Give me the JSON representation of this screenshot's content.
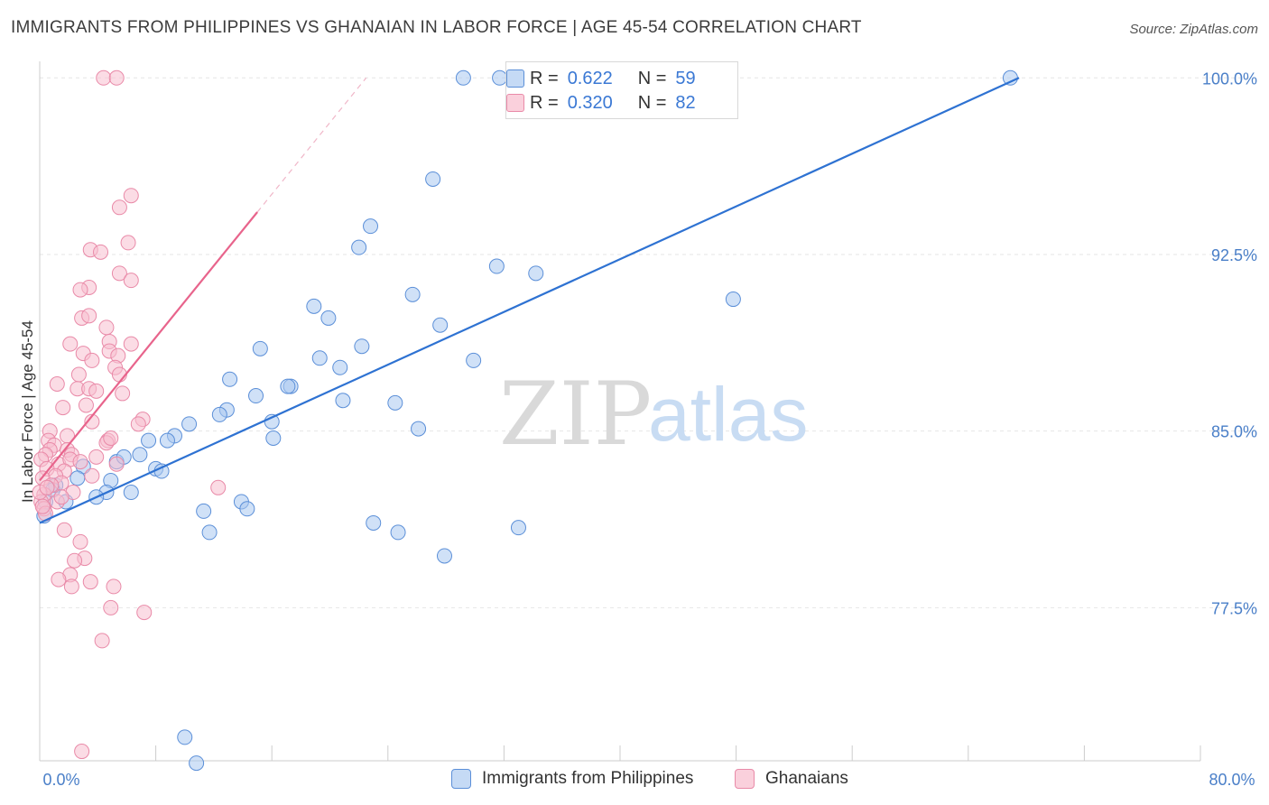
{
  "title": "IMMIGRANTS FROM PHILIPPINES VS GHANAIAN IN LABOR FORCE | AGE 45-54 CORRELATION CHART",
  "source": "Source: ZipAtlas.com",
  "watermark": {
    "zip": "ZIP",
    "atlas": "atlas"
  },
  "legend": {
    "rows": [
      {
        "r_label": "R =",
        "r_value": "0.622",
        "n_label": "N =",
        "n_value": "59"
      },
      {
        "r_label": "R =",
        "r_value": "0.320",
        "n_label": "N =",
        "n_value": "82"
      }
    ]
  },
  "colors": {
    "blue_fill": "#aac8f0",
    "blue_stroke": "#5b8fd8",
    "blue_line": "#2e72d2",
    "pink_fill": "#f7c0d0",
    "pink_stroke": "#e98aa8",
    "pink_line": "#e8648c",
    "axis_text": "#4a7fc8",
    "grid": "#e6e6e6"
  },
  "chart_data": {
    "type": "scatter",
    "title": "IMMIGRANTS FROM PHILIPPINES VS GHANAIAN IN LABOR FORCE | AGE 45-54 CORRELATION CHART",
    "xlabel": "",
    "ylabel": "In Labor Force | Age 45-54",
    "xlim": [
      0,
      80
    ],
    "ylim": [
      71,
      100.7
    ],
    "x_tick_labels": [
      "0.0%",
      "80.0%"
    ],
    "y_ticks": [
      77.5,
      85.0,
      92.5,
      100.0
    ],
    "y_tick_labels": [
      "77.5%",
      "85.0%",
      "92.5%",
      "100.0%"
    ],
    "series": [
      {
        "name": "Immigrants from Philippines",
        "color": "#5b8fd8",
        "trend": {
          "x": [
            0,
            67.5
          ],
          "y": [
            81.1,
            100.0
          ]
        },
        "points": [
          [
            29.2,
            100.0
          ],
          [
            31.7,
            100.0
          ],
          [
            66.9,
            100.0
          ],
          [
            27.1,
            95.7
          ],
          [
            22.8,
            93.7
          ],
          [
            22.0,
            92.8
          ],
          [
            31.5,
            92.0
          ],
          [
            34.2,
            91.7
          ],
          [
            47.8,
            90.6
          ],
          [
            25.7,
            90.8
          ],
          [
            18.9,
            90.3
          ],
          [
            19.9,
            89.8
          ],
          [
            27.6,
            89.5
          ],
          [
            15.2,
            88.5
          ],
          [
            22.2,
            88.6
          ],
          [
            19.3,
            88.1
          ],
          [
            29.9,
            88.0
          ],
          [
            20.7,
            87.7
          ],
          [
            13.1,
            87.2
          ],
          [
            17.3,
            86.9
          ],
          [
            17.1,
            86.9
          ],
          [
            14.9,
            86.5
          ],
          [
            20.9,
            86.3
          ],
          [
            24.5,
            86.2
          ],
          [
            12.9,
            85.9
          ],
          [
            12.4,
            85.7
          ],
          [
            16.0,
            85.4
          ],
          [
            10.3,
            85.3
          ],
          [
            26.1,
            85.1
          ],
          [
            9.3,
            84.8
          ],
          [
            8.8,
            84.6
          ],
          [
            7.5,
            84.6
          ],
          [
            16.1,
            84.7
          ],
          [
            6.9,
            84.0
          ],
          [
            5.3,
            83.7
          ],
          [
            5.8,
            83.9
          ],
          [
            3.0,
            83.5
          ],
          [
            8.0,
            83.4
          ],
          [
            8.4,
            83.3
          ],
          [
            2.6,
            83.0
          ],
          [
            4.9,
            82.9
          ],
          [
            1.1,
            82.7
          ],
          [
            0.9,
            82.5
          ],
          [
            4.6,
            82.4
          ],
          [
            6.3,
            82.4
          ],
          [
            3.9,
            82.2
          ],
          [
            0.4,
            82.0
          ],
          [
            1.8,
            82.0
          ],
          [
            13.9,
            82.0
          ],
          [
            14.3,
            81.7
          ],
          [
            11.3,
            81.6
          ],
          [
            23.0,
            81.1
          ],
          [
            33.0,
            80.9
          ],
          [
            11.7,
            80.7
          ],
          [
            24.7,
            80.7
          ],
          [
            27.9,
            79.7
          ],
          [
            10.0,
            72.0
          ],
          [
            10.8,
            70.9
          ],
          [
            0.3,
            81.4
          ]
        ]
      },
      {
        "name": "Ghanaians",
        "color": "#e98aa8",
        "trend": {
          "x": [
            0,
            15.0
          ],
          "y": [
            82.9,
            94.3
          ]
        },
        "trend_dashed": {
          "x": [
            15.0,
            22.5
          ],
          "y": [
            94.3,
            100.0
          ]
        },
        "points": [
          [
            4.4,
            100.0
          ],
          [
            5.3,
            100.0
          ],
          [
            6.3,
            95.0
          ],
          [
            5.5,
            94.5
          ],
          [
            6.1,
            93.0
          ],
          [
            3.5,
            92.7
          ],
          [
            4.2,
            92.6
          ],
          [
            5.5,
            91.7
          ],
          [
            6.3,
            91.4
          ],
          [
            3.4,
            91.1
          ],
          [
            2.8,
            91.0
          ],
          [
            2.9,
            89.8
          ],
          [
            3.4,
            89.9
          ],
          [
            4.6,
            89.4
          ],
          [
            4.8,
            88.8
          ],
          [
            2.1,
            88.7
          ],
          [
            6.3,
            88.7
          ],
          [
            3.0,
            88.3
          ],
          [
            4.8,
            88.4
          ],
          [
            5.4,
            88.2
          ],
          [
            3.6,
            88.0
          ],
          [
            5.2,
            87.7
          ],
          [
            2.7,
            87.4
          ],
          [
            5.5,
            87.4
          ],
          [
            1.2,
            87.0
          ],
          [
            2.6,
            86.8
          ],
          [
            3.4,
            86.8
          ],
          [
            3.9,
            86.7
          ],
          [
            5.7,
            86.6
          ],
          [
            1.6,
            86.0
          ],
          [
            3.2,
            86.1
          ],
          [
            7.1,
            85.5
          ],
          [
            3.6,
            85.4
          ],
          [
            0.7,
            85.0
          ],
          [
            1.9,
            84.8
          ],
          [
            4.7,
            84.6
          ],
          [
            0.6,
            84.6
          ],
          [
            4.6,
            84.5
          ],
          [
            1.0,
            84.4
          ],
          [
            0.7,
            84.2
          ],
          [
            1.9,
            84.2
          ],
          [
            0.4,
            84.0
          ],
          [
            2.2,
            84.0
          ],
          [
            0.1,
            83.8
          ],
          [
            1.3,
            83.6
          ],
          [
            2.1,
            83.8
          ],
          [
            2.8,
            83.7
          ],
          [
            5.3,
            83.6
          ],
          [
            0.5,
            83.4
          ],
          [
            1.7,
            83.3
          ],
          [
            1.1,
            83.1
          ],
          [
            0.2,
            83.0
          ],
          [
            3.6,
            83.1
          ],
          [
            1.5,
            82.8
          ],
          [
            0.8,
            82.7
          ],
          [
            2.3,
            82.4
          ],
          [
            0.3,
            82.3
          ],
          [
            0.1,
            82.0
          ],
          [
            1.2,
            82.0
          ],
          [
            12.3,
            82.6
          ],
          [
            0.3,
            81.7
          ],
          [
            0.4,
            81.5
          ],
          [
            1.7,
            80.8
          ],
          [
            2.8,
            80.3
          ],
          [
            3.1,
            79.6
          ],
          [
            2.4,
            79.5
          ],
          [
            2.1,
            78.9
          ],
          [
            1.3,
            78.7
          ],
          [
            3.5,
            78.6
          ],
          [
            2.2,
            78.4
          ],
          [
            5.1,
            78.4
          ],
          [
            4.9,
            77.5
          ],
          [
            7.2,
            77.3
          ],
          [
            4.3,
            76.1
          ],
          [
            2.9,
            71.4
          ],
          [
            0.0,
            82.4
          ],
          [
            0.2,
            81.8
          ],
          [
            0.5,
            82.6
          ],
          [
            1.5,
            82.2
          ],
          [
            3.9,
            83.9
          ],
          [
            6.8,
            85.3
          ],
          [
            4.9,
            84.7
          ]
        ]
      }
    ]
  },
  "bottom_legend": [
    {
      "label": "Immigrants from Philippines"
    },
    {
      "label": "Ghanaians"
    }
  ]
}
